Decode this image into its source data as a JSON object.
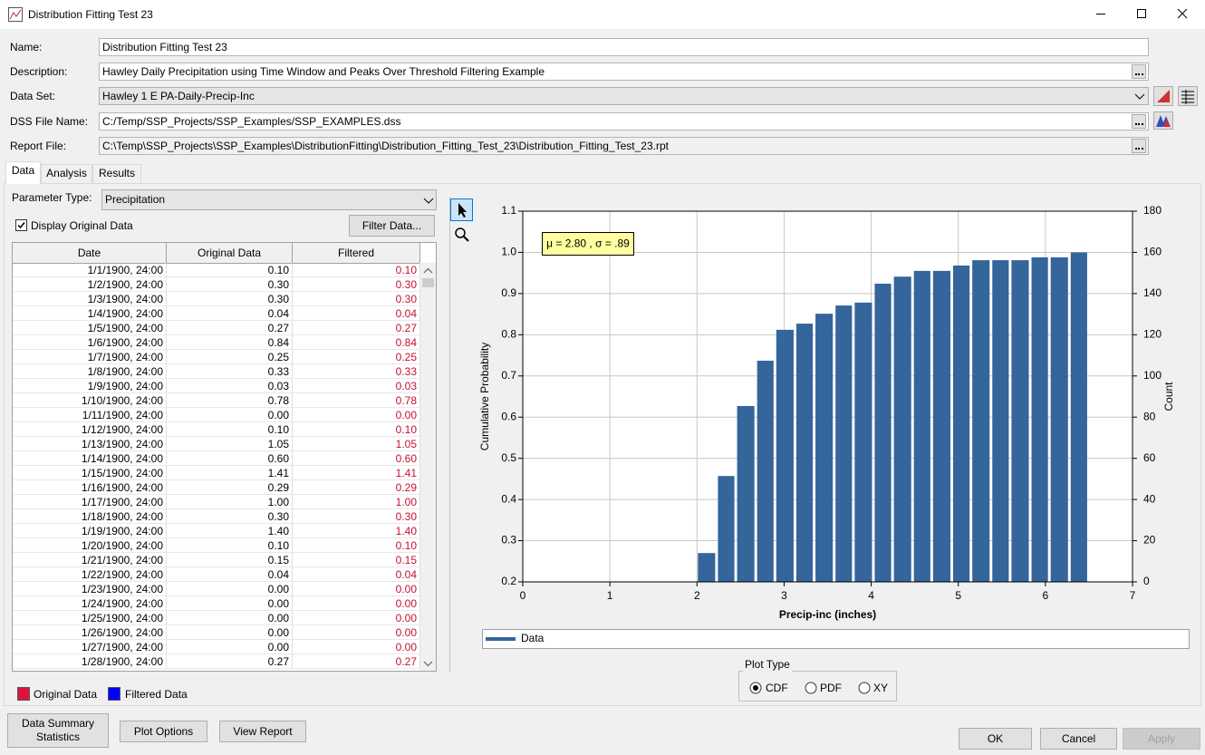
{
  "window": {
    "title": "Distribution Fitting Test 23"
  },
  "form": {
    "fields": [
      {
        "label": "Name:",
        "value": "Distribution Fitting Test 23"
      },
      {
        "label": "Description:",
        "value": "Hawley Daily Precipitation using Time Window and Peaks Over Threshold Filtering Example"
      },
      {
        "label": "Data Set:",
        "value": "Hawley 1 E PA-Daily-Precip-Inc"
      },
      {
        "label": "DSS File Name:",
        "value": "C:/Temp/SSP_Projects/SSP_Examples/SSP_EXAMPLES.dss"
      },
      {
        "label": "Report File:",
        "value": "C:\\Temp\\SSP_Projects\\SSP_Examples\\DistributionFitting\\Distribution_Fitting_Test_23\\Distribution_Fitting_Test_23.rpt"
      }
    ]
  },
  "tabs": [
    "Data",
    "Analysis",
    "Results"
  ],
  "data_tab": {
    "parameter_label": "Parameter Type:",
    "parameter_value": "Precipitation",
    "display_original": "Display Original Data",
    "filter_button": "Filter Data...",
    "table": {
      "columns": [
        "Date",
        "Original Data",
        "Filtered"
      ],
      "rows": [
        [
          "1/1/1900, 24:00",
          "0.10",
          "0.10"
        ],
        [
          "1/2/1900, 24:00",
          "0.30",
          "0.30"
        ],
        [
          "1/3/1900, 24:00",
          "0.30",
          "0.30"
        ],
        [
          "1/4/1900, 24:00",
          "0.04",
          "0.04"
        ],
        [
          "1/5/1900, 24:00",
          "0.27",
          "0.27"
        ],
        [
          "1/6/1900, 24:00",
          "0.84",
          "0.84"
        ],
        [
          "1/7/1900, 24:00",
          "0.25",
          "0.25"
        ],
        [
          "1/8/1900, 24:00",
          "0.33",
          "0.33"
        ],
        [
          "1/9/1900, 24:00",
          "0.03",
          "0.03"
        ],
        [
          "1/10/1900, 24:00",
          "0.78",
          "0.78"
        ],
        [
          "1/11/1900, 24:00",
          "0.00",
          "0.00"
        ],
        [
          "1/12/1900, 24:00",
          "0.10",
          "0.10"
        ],
        [
          "1/13/1900, 24:00",
          "1.05",
          "1.05"
        ],
        [
          "1/14/1900, 24:00",
          "0.60",
          "0.60"
        ],
        [
          "1/15/1900, 24:00",
          "1.41",
          "1.41"
        ],
        [
          "1/16/1900, 24:00",
          "0.29",
          "0.29"
        ],
        [
          "1/17/1900, 24:00",
          "1.00",
          "1.00"
        ],
        [
          "1/18/1900, 24:00",
          "0.30",
          "0.30"
        ],
        [
          "1/19/1900, 24:00",
          "1.40",
          "1.40"
        ],
        [
          "1/20/1900, 24:00",
          "0.10",
          "0.10"
        ],
        [
          "1/21/1900, 24:00",
          "0.15",
          "0.15"
        ],
        [
          "1/22/1900, 24:00",
          "0.04",
          "0.04"
        ],
        [
          "1/23/1900, 24:00",
          "0.00",
          "0.00"
        ],
        [
          "1/24/1900, 24:00",
          "0.00",
          "0.00"
        ],
        [
          "1/25/1900, 24:00",
          "0.00",
          "0.00"
        ],
        [
          "1/26/1900, 24:00",
          "0.00",
          "0.00"
        ],
        [
          "1/27/1900, 24:00",
          "0.00",
          "0.00"
        ],
        [
          "1/28/1900, 24:00",
          "0.27",
          "0.27"
        ]
      ]
    },
    "legend": [
      "Original Data",
      "Filtered Data"
    ]
  },
  "plot_type": {
    "title": "Plot Type",
    "options": [
      "CDF",
      "PDF",
      "XY"
    ]
  },
  "buttons": {
    "data_summary": "Data Summary Statistics",
    "plot_options": "Plot Options",
    "view_report": "View Report",
    "ok": "OK",
    "cancel": "Cancel",
    "apply": "Apply"
  },
  "chart_data": {
    "type": "histogram",
    "annotation": "μ = 2.80 , σ = .89",
    "xlabel": "Precip-inc (inches)",
    "ylabel": "Cumulative Probability",
    "y2label": "Count",
    "bins": [
      2.0,
      2.23,
      2.45,
      2.68,
      2.9,
      3.13,
      3.35,
      3.58,
      3.8,
      4.03,
      4.25,
      4.48,
      4.7,
      4.93,
      5.15,
      5.38,
      5.6,
      5.83,
      6.05,
      6.28,
      6.5
    ],
    "series": [
      {
        "name": "Data",
        "color": "#34659b",
        "values": [
          0.27,
          0.457,
          0.627,
          0.737,
          0.812,
          0.827,
          0.851,
          0.871,
          0.878,
          0.924,
          0.941,
          0.955,
          0.955,
          0.968,
          0.981,
          0.981,
          0.981,
          0.988,
          0.988,
          1.0
        ]
      }
    ],
    "xlim": [
      0,
      7
    ],
    "xticks": [
      0,
      1,
      2,
      3,
      4,
      5,
      6,
      7
    ],
    "ylim": [
      0.2,
      1.1
    ],
    "yticks": [
      0.2,
      0.3,
      0.4,
      0.5,
      0.6,
      0.7,
      0.8,
      0.9,
      {
        "value": 1,
        "label": "1.0"
      },
      1.1
    ],
    "y2lim": [
      0,
      180
    ],
    "y2ticks": [
      0,
      20,
      40,
      60,
      80,
      100,
      120,
      140,
      160,
      180
    ],
    "grid": true
  }
}
